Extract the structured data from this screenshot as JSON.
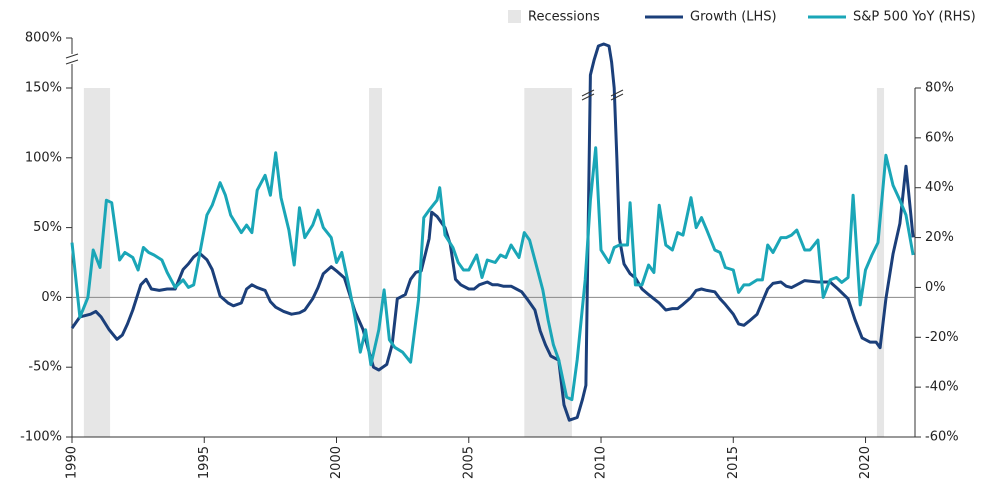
{
  "chart_data": {
    "type": "line",
    "shaded_periods": {
      "name": "Recessions",
      "color": "#e6e6e6",
      "ranges": [
        [
          1990.45,
          1991.44
        ],
        [
          2001.23,
          2001.72
        ],
        [
          2007.1,
          2008.9
        ],
        [
          2020.43,
          2020.7
        ]
      ]
    },
    "xlim": [
      1990,
      2021.87
    ],
    "xticks": [
      1990,
      1995,
      2000,
      2005,
      2010,
      2015,
      2020
    ],
    "ylim": [
      -100,
      800
    ],
    "ybreak": 150,
    "yticks": [
      {
        "value": -100,
        "label": "-100%"
      },
      {
        "value": -50,
        "label": "-50%"
      },
      {
        "value": 0,
        "label": "0%"
      },
      {
        "value": 50,
        "label": "50%"
      },
      {
        "value": 100,
        "label": "100%"
      },
      {
        "value": 150,
        "label": "150%"
      },
      {
        "value": 800,
        "label": "800%"
      }
    ],
    "y2lim": [
      -60,
      80
    ],
    "y2ticks": [
      {
        "value": -60,
        "label": "-60%"
      },
      {
        "value": -40,
        "label": "-40%"
      },
      {
        "value": -20,
        "label": "-20%"
      },
      {
        "value": 0,
        "label": "0%"
      },
      {
        "value": 20,
        "label": "20%"
      },
      {
        "value": 40,
        "label": "40%"
      },
      {
        "value": 60,
        "label": "60%"
      },
      {
        "value": 80,
        "label": "80%"
      }
    ],
    "series": [
      {
        "name": "Growth (LHS)",
        "color": "#1b3f7a",
        "axis": "y",
        "x": [
          1990,
          1990.3,
          1990.7,
          1990.9,
          1991.1,
          1991.4,
          1991.7,
          1991.9,
          1992.1,
          1992.3,
          1992.6,
          1992.8,
          1993.0,
          1993.3,
          1993.6,
          1993.9,
          1994.2,
          1994.4,
          1994.6,
          1994.8,
          1995.1,
          1995.3,
          1995.6,
          1995.9,
          1996.1,
          1996.4,
          1996.6,
          1996.8,
          1997.0,
          1997.3,
          1997.5,
          1997.7,
          1998.0,
          1998.3,
          1998.6,
          1998.8,
          1999.1,
          1999.3,
          1999.5,
          1999.8,
          2000.0,
          2000.3,
          2000.5,
          2000.7,
          2001.0,
          2001.2,
          2001.4,
          2001.6,
          2001.9,
          2002.1,
          2002.3,
          2002.6,
          2002.8,
          2003.0,
          2003.2,
          2003.5,
          2003.6,
          2003.8,
          2004.1,
          2004.3,
          2004.5,
          2004.7,
          2005.0,
          2005.2,
          2005.4,
          2005.7,
          2005.9,
          2006.1,
          2006.3,
          2006.6,
          2006.8,
          2007.0,
          2007.2,
          2007.5,
          2007.7,
          2007.9,
          2008.1,
          2008.4,
          2008.6,
          2008.8,
          2009.1,
          2009.3,
          2009.43,
          2009.6,
          2009.74,
          2009.9,
          2010.1,
          2010.3,
          2010.4,
          2010.5,
          2010.6,
          2010.7,
          2010.87,
          2011.1,
          2011.3,
          2011.55,
          2011.8,
          2012.0,
          2012.2,
          2012.45,
          2012.7,
          2012.9,
          2013.1,
          2013.4,
          2013.6,
          2013.8,
          2014.0,
          2014.3,
          2014.5,
          2014.7,
          2015.0,
          2015.2,
          2015.4,
          2015.6,
          2015.9,
          2016.1,
          2016.3,
          2016.5,
          2016.8,
          2017.0,
          2017.2,
          2017.4,
          2017.7,
          2018.2,
          2018.66,
          2018.96,
          2019.34,
          2019.6,
          2019.87,
          2020.17,
          2020.4,
          2020.55,
          2020.77,
          2021.04,
          2021.3,
          2021.53,
          2021.8
        ],
        "values": [
          -22,
          -14,
          -12,
          -10,
          -14,
          -23,
          -30,
          -27,
          -19,
          -9,
          9,
          13,
          6,
          5,
          6,
          6,
          20,
          24,
          29,
          32,
          27,
          20,
          1,
          -4,
          -6,
          -4,
          6,
          9,
          7,
          5,
          -3,
          -7,
          -10,
          -12,
          -11,
          -9,
          -1,
          7,
          17,
          22,
          19,
          14,
          2,
          -10,
          -23,
          -37,
          -50,
          -52,
          -48,
          -34,
          -1,
          2,
          13,
          18,
          19,
          42,
          61,
          58,
          50,
          38,
          13,
          9,
          6,
          6,
          9,
          11,
          9,
          9,
          8,
          8,
          6,
          4,
          -1,
          -9,
          -24,
          -34,
          -42,
          -45,
          -77,
          -88,
          -86,
          -73,
          -63,
          319,
          514,
          696,
          722,
          696,
          488,
          150,
          99,
          42,
          24,
          17,
          14,
          6,
          2,
          -1,
          -4,
          -9,
          -8,
          -8,
          -5,
          0,
          5,
          6,
          5,
          4,
          -1,
          -5,
          -12,
          -19,
          -20,
          -17,
          -12,
          -3,
          6,
          10,
          11,
          8,
          7,
          9,
          12,
          11,
          11,
          6,
          -1,
          -16,
          -29,
          -32,
          -32,
          -36,
          -1,
          31,
          53,
          94,
          43
        ]
      },
      {
        "name": "S&P 500 YoY (RHS)",
        "color": "#1aa6b7",
        "axis": "y2",
        "x": [
          1990,
          1990.3,
          1990.6,
          1990.8,
          1991.06,
          1991.3,
          1991.5,
          1991.8,
          1992.0,
          1992.3,
          1992.5,
          1992.7,
          1992.9,
          1993.1,
          1993.4,
          1993.6,
          1993.9,
          1994.2,
          1994.4,
          1994.6,
          1994.8,
          1995.1,
          1995.3,
          1995.6,
          1995.8,
          1996.0,
          1996.4,
          1996.6,
          1996.8,
          1997.0,
          1997.3,
          1997.5,
          1997.7,
          1997.9,
          1998.2,
          1998.4,
          1998.6,
          1998.8,
          1999.1,
          1999.3,
          1999.5,
          1999.8,
          2000.0,
          2000.2,
          2000.5,
          2000.7,
          2000.9,
          2001.1,
          2001.3,
          2001.6,
          2001.8,
          2002.0,
          2002.2,
          2002.5,
          2002.8,
          2003.1,
          2003.3,
          2003.5,
          2003.8,
          2003.9,
          2004.1,
          2004.4,
          2004.6,
          2004.8,
          2005.0,
          2005.3,
          2005.5,
          2005.7,
          2006.0,
          2006.2,
          2006.4,
          2006.6,
          2006.9,
          2007.1,
          2007.3,
          2007.5,
          2007.8,
          2008.0,
          2008.2,
          2008.4,
          2008.7,
          2008.9,
          2009.1,
          2009.4,
          2009.6,
          2009.8,
          2010.0,
          2010.3,
          2010.5,
          2010.7,
          2011.0,
          2011.1,
          2011.3,
          2011.55,
          2011.8,
          2012.0,
          2012.2,
          2012.45,
          2012.7,
          2012.9,
          2013.1,
          2013.4,
          2013.6,
          2013.8,
          2014.0,
          2014.3,
          2014.5,
          2014.7,
          2015.0,
          2015.2,
          2015.4,
          2015.6,
          2015.9,
          2016.1,
          2016.3,
          2016.5,
          2016.8,
          2017.0,
          2017.2,
          2017.4,
          2017.7,
          2017.9,
          2018.2,
          2018.4,
          2018.66,
          2018.9,
          2019.1,
          2019.34,
          2019.53,
          2019.8,
          2020.0,
          2020.24,
          2020.47,
          2020.77,
          2021.04,
          2021.3,
          2021.53,
          2021.8
        ],
        "values": [
          18,
          -12,
          -4,
          15,
          8,
          35,
          34,
          11,
          14,
          12,
          7,
          16,
          14,
          13,
          11,
          6,
          0,
          3,
          0,
          1,
          12,
          29,
          33,
          42,
          37,
          29,
          22,
          25,
          22,
          39,
          45,
          37,
          54,
          36,
          23,
          9,
          32,
          20,
          25,
          31,
          24,
          20,
          10,
          14,
          -1,
          -12,
          -26,
          -17,
          -31,
          -17,
          -1,
          -21,
          -24,
          -26,
          -30,
          -5,
          28,
          31,
          35,
          40,
          21,
          16,
          10,
          7,
          7,
          13,
          4,
          11,
          10,
          13,
          12,
          17,
          12,
          22,
          19,
          11,
          -1,
          -13,
          -23,
          -29,
          -44,
          -45,
          -29,
          3,
          35,
          56,
          15,
          10,
          16,
          17,
          17,
          34,
          1,
          1,
          9,
          6,
          33,
          17,
          15,
          22,
          21,
          36,
          24,
          28,
          23,
          15,
          14,
          8,
          7,
          -2,
          1,
          1,
          3,
          3,
          17,
          14,
          20,
          20,
          21,
          23,
          15,
          15,
          19,
          -4,
          3,
          4,
          2,
          4,
          37,
          -7,
          7,
          13,
          18,
          53,
          41,
          35,
          29,
          13
        ]
      }
    ]
  }
}
